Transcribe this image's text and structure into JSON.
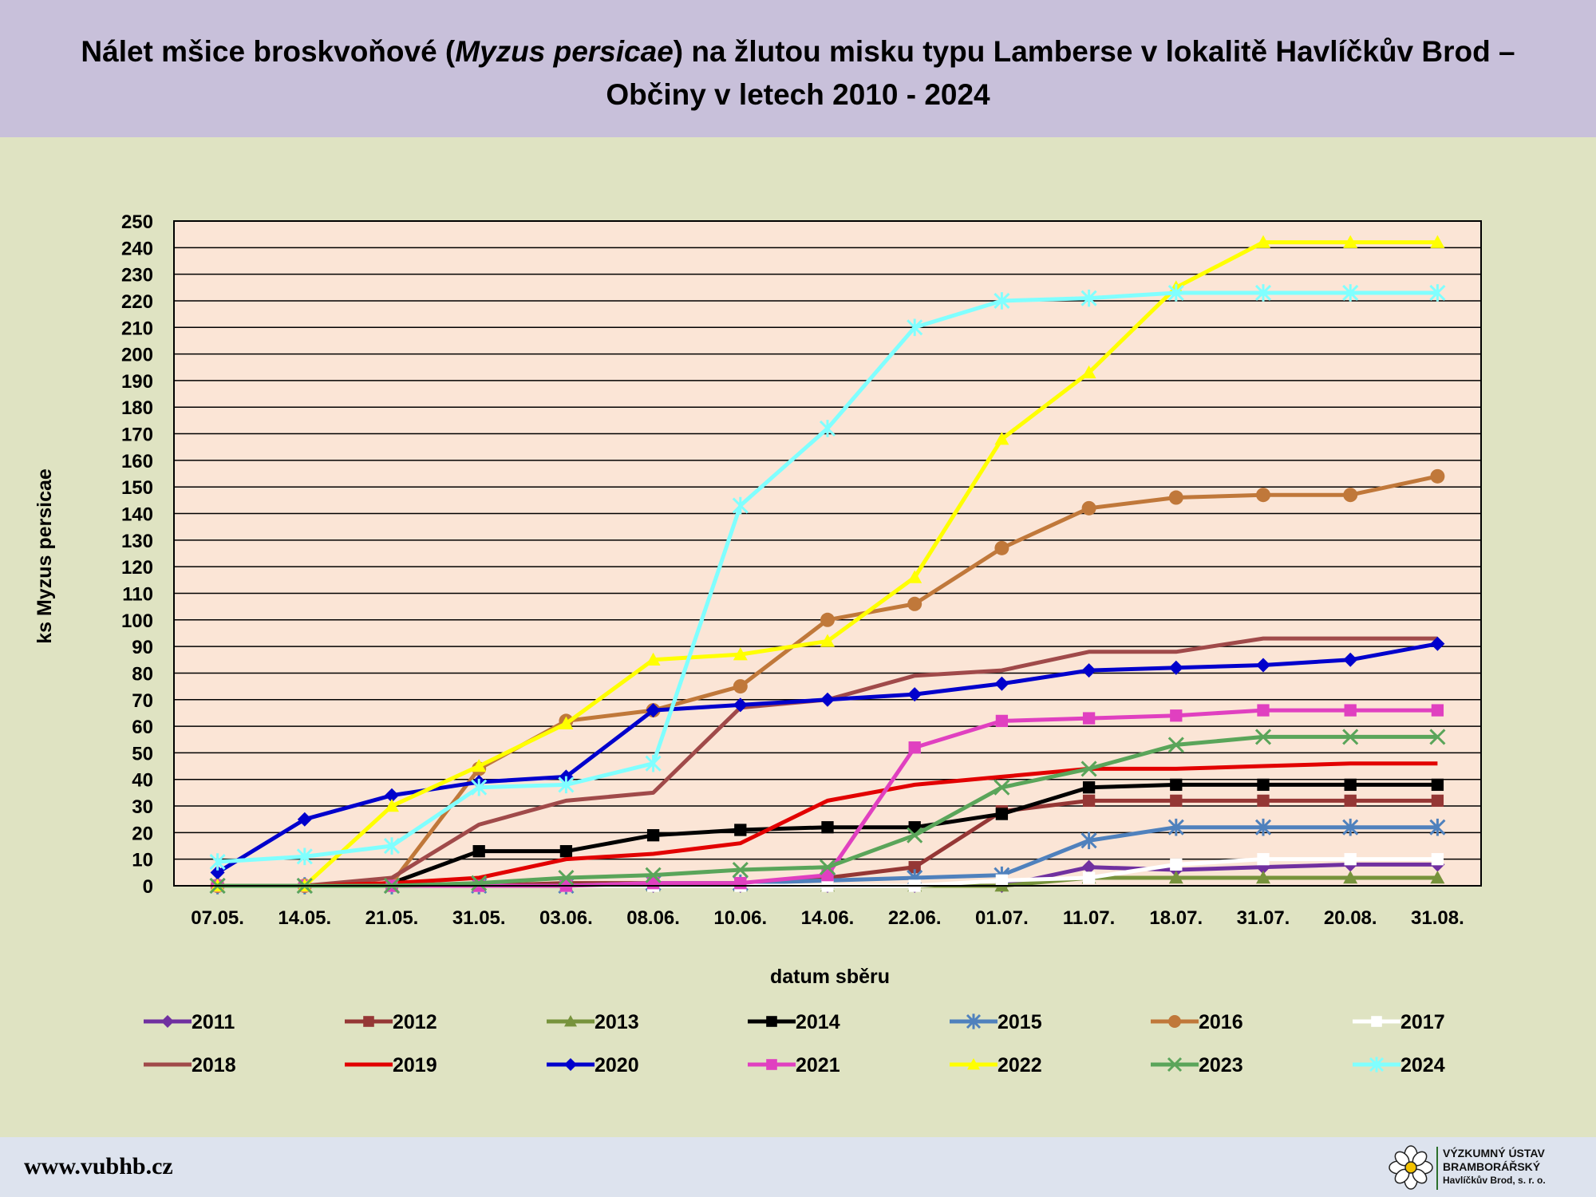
{
  "header": {
    "title_part1": "Nálet mšice broskvoňové (",
    "title_italic": "Myzus persicae",
    "title_part2": ") na žlutou misku typu Lamberse v lokalitě Havlíčkův Brod –",
    "title_line2": "Občiny v letech 2010 - 2024"
  },
  "footer": {
    "website": "www.vubhb.cz",
    "logo_line1": "VÝZKUMNÝ ÚSTAV",
    "logo_line2": "BRAMBORÁŘSKÝ",
    "logo_line3": "Havlíčkův Brod, s. r. o."
  },
  "chart_data": {
    "type": "line",
    "xlabel": "datum sběru",
    "ylabel": "ks Myzus persicae",
    "ylim": [
      0,
      250
    ],
    "ytick_step": 10,
    "grid": "horizontal",
    "legend_position": "bottom",
    "categories": [
      "07.05.",
      "14.05.",
      "21.05.",
      "31.05.",
      "03.06.",
      "08.06.",
      "10.06.",
      "14.06.",
      "22.06.",
      "01.07.",
      "11.07.",
      "18.07.",
      "31.07.",
      "20.08.",
      "31.08."
    ],
    "series": [
      {
        "name": "2011",
        "color": "#7030a0",
        "marker": "diamond",
        "values": [
          0,
          0,
          0,
          0,
          0,
          0,
          0,
          0,
          0,
          0,
          7,
          6,
          7,
          8,
          8
        ]
      },
      {
        "name": "2012",
        "color": "#953735",
        "marker": "square",
        "values": [
          0,
          0,
          0,
          0,
          1,
          1,
          1,
          3,
          7,
          28,
          32,
          32,
          32,
          32,
          32
        ]
      },
      {
        "name": "2013",
        "color": "#77933c",
        "marker": "triangle",
        "values": [
          0,
          0,
          0,
          0,
          0,
          0,
          0,
          0,
          0,
          0,
          3,
          3,
          3,
          3,
          3
        ]
      },
      {
        "name": "2014",
        "color": "#000000",
        "marker": "square",
        "values": [
          0,
          0,
          1,
          13,
          13,
          19,
          21,
          22,
          22,
          27,
          37,
          38,
          38,
          38,
          38
        ]
      },
      {
        "name": "2015",
        "color": "#4f81bd",
        "marker": "star",
        "values": [
          0,
          0,
          0,
          0,
          0,
          1,
          1,
          2,
          3,
          4,
          17,
          22,
          22,
          22,
          22
        ]
      },
      {
        "name": "2016",
        "color": "#c0783a",
        "marker": "circle",
        "values": [
          0,
          0,
          1,
          44,
          62,
          66,
          75,
          100,
          106,
          127,
          142,
          146,
          147,
          147,
          154
        ]
      },
      {
        "name": "2017",
        "color": "#ffffff",
        "marker": "square",
        "values": [
          0,
          0,
          0,
          0,
          0,
          0,
          0,
          0,
          0,
          2,
          3,
          8,
          10,
          10,
          10
        ]
      },
      {
        "name": "2018",
        "color": "#a04a4a",
        "marker": "none",
        "values": [
          0,
          0,
          3,
          23,
          32,
          35,
          67,
          70,
          79,
          81,
          88,
          88,
          93,
          93,
          93
        ]
      },
      {
        "name": "2019",
        "color": "#e20000",
        "marker": "none",
        "values": [
          0,
          0,
          1,
          3,
          10,
          12,
          16,
          32,
          38,
          41,
          44,
          44,
          45,
          46,
          46
        ]
      },
      {
        "name": "2020",
        "color": "#0000cc",
        "marker": "diamond",
        "values": [
          5,
          25,
          34,
          39,
          41,
          66,
          68,
          70,
          72,
          76,
          81,
          82,
          83,
          85,
          91
        ]
      },
      {
        "name": "2021",
        "color": "#e040c0",
        "marker": "square",
        "values": [
          0,
          0,
          0,
          0,
          0,
          1,
          1,
          4,
          52,
          62,
          63,
          64,
          66,
          66,
          66
        ]
      },
      {
        "name": "2022",
        "color": "#ffff00",
        "marker": "triangle",
        "values": [
          0,
          0,
          30,
          45,
          61,
          85,
          87,
          92,
          116,
          168,
          193,
          225,
          242,
          242,
          242
        ]
      },
      {
        "name": "2023",
        "color": "#5aa55a",
        "marker": "x",
        "values": [
          0,
          0,
          0,
          1,
          3,
          4,
          6,
          7,
          19,
          37,
          44,
          53,
          56,
          56,
          56
        ]
      },
      {
        "name": "2024",
        "color": "#80ffff",
        "marker": "star",
        "values": [
          9,
          11,
          15,
          37,
          38,
          46,
          143,
          172,
          210,
          220,
          221,
          223,
          223,
          223,
          223
        ]
      }
    ]
  }
}
